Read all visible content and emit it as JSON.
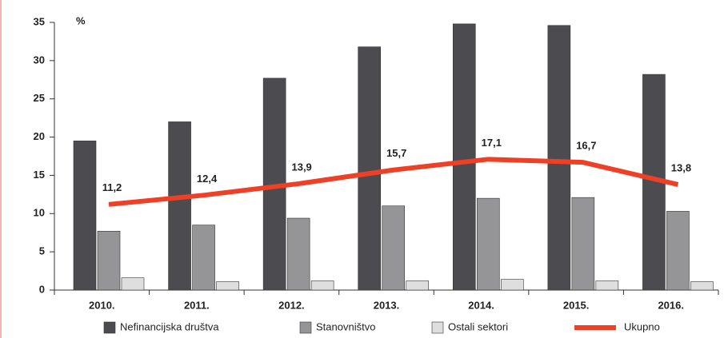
{
  "chart_data": {
    "type": "bar",
    "unit": "%",
    "categories": [
      "2010.",
      "2011.",
      "2012.",
      "2013.",
      "2014.",
      "2015.",
      "2016."
    ],
    "series": [
      {
        "name": "Nefinancijska društva",
        "color": "#4b4b50",
        "values": [
          19.5,
          22,
          27.7,
          31.8,
          34.8,
          34.6,
          28.2
        ]
      },
      {
        "name": "Stanovništvo",
        "color": "#959597",
        "values": [
          7.7,
          8.5,
          9.4,
          11,
          12,
          12.1,
          10.3
        ]
      },
      {
        "name": "Ostali sektori",
        "color": "#dededf",
        "values": [
          1.6,
          1.1,
          1.2,
          1.2,
          1.4,
          1.2,
          1.1
        ]
      },
      {
        "name": "Ukupno",
        "type": "line",
        "color": "#ee4027",
        "values": [
          11.2,
          12.4,
          13.9,
          15.7,
          17.1,
          16.7,
          13.8
        ],
        "value_labels": [
          "11,2",
          "12,4",
          "13,9",
          "15,7",
          "17,1",
          "16,7",
          "13,8"
        ]
      }
    ],
    "ylim": [
      0,
      35
    ],
    "yticks": [
      0,
      5,
      10,
      15,
      20,
      25,
      30,
      35
    ],
    "grid": false,
    "legend": "bottom"
  }
}
